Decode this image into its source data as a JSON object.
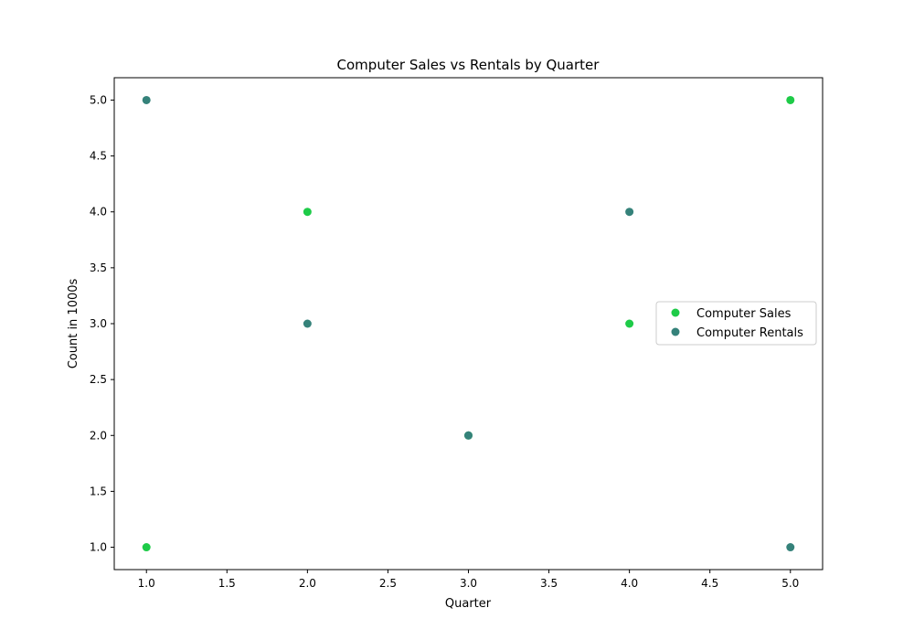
{
  "chart_data": {
    "type": "scatter",
    "title": "Computer Sales vs Rentals by Quarter",
    "xlabel": "Quarter",
    "ylabel": "Count in 1000s",
    "xlim": [
      0.8,
      5.2
    ],
    "ylim": [
      0.8,
      5.2
    ],
    "xticks": [
      1.0,
      1.5,
      2.0,
      2.5,
      3.0,
      3.5,
      4.0,
      4.5,
      5.0
    ],
    "yticks": [
      1.0,
      1.5,
      2.0,
      2.5,
      3.0,
      3.5,
      4.0,
      4.5,
      5.0
    ],
    "xtick_labels": [
      "1.0",
      "1.5",
      "2.0",
      "2.5",
      "3.0",
      "3.5",
      "4.0",
      "4.5",
      "5.0"
    ],
    "ytick_labels": [
      "1.0",
      "1.5",
      "2.0",
      "2.5",
      "3.0",
      "3.5",
      "4.0",
      "4.5",
      "5.0"
    ],
    "grid": false,
    "legend_position": "right",
    "series": [
      {
        "name": "Computer Sales",
        "color": "#1ecb48",
        "points": [
          {
            "x": 1,
            "y": 1
          },
          {
            "x": 2,
            "y": 4
          },
          {
            "x": 3,
            "y": 2
          },
          {
            "x": 4,
            "y": 3
          },
          {
            "x": 5,
            "y": 5
          }
        ]
      },
      {
        "name": "Computer Rentals",
        "color": "#35827a",
        "points": [
          {
            "x": 1,
            "y": 5
          },
          {
            "x": 2,
            "y": 3
          },
          {
            "x": 3,
            "y": 2
          },
          {
            "x": 4,
            "y": 4
          },
          {
            "x": 5,
            "y": 1
          }
        ]
      }
    ]
  }
}
